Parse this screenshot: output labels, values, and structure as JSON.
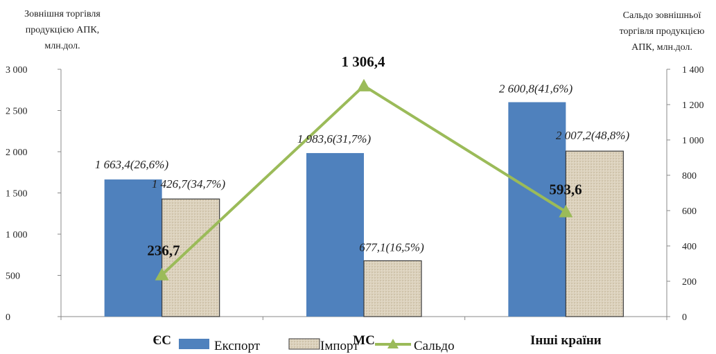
{
  "chart_data": {
    "type": "bar",
    "categories": [
      "ЄС",
      "МС",
      "Інші країни"
    ],
    "left_axis": {
      "label_lines": [
        "Зовнішня торгівля",
        "продукцією АПК,",
        "млн.дол."
      ],
      "range": [
        0,
        3000
      ],
      "ticks": [
        0,
        500,
        1000,
        1500,
        2000,
        2500,
        3000
      ],
      "tick_labels": [
        "0",
        "500",
        "1 000",
        "1 500",
        "2 000",
        "2 500",
        "3 000"
      ]
    },
    "right_axis": {
      "label_lines": [
        "Сальдо зовнішньої",
        "торгівля продукцією",
        "АПК, млн.дол."
      ],
      "range": [
        0,
        1400
      ],
      "ticks": [
        0,
        200,
        400,
        600,
        800,
        1000,
        1200,
        1400
      ],
      "tick_labels": [
        "0",
        "200",
        "400",
        "600",
        "800",
        "1 000",
        "1 200",
        "1 400"
      ]
    },
    "series": [
      {
        "name": "Експорт",
        "type": "bar",
        "axis": "left",
        "color": "#4f81bd",
        "values": [
          1663.4,
          1983.6,
          2600.8
        ],
        "labels": [
          "1 663,4(26,6%)",
          "1 983,6(31,7%)",
          "2 600,8(41,6%)"
        ]
      },
      {
        "name": "Імпорт",
        "type": "bar",
        "axis": "left",
        "color": "#ddd3bf",
        "values": [
          1426.7,
          677.1,
          2007.2
        ],
        "labels": [
          "1 426,7(34,7%)",
          "677,1(16,5%)",
          "2 007,2(48,8%)"
        ]
      },
      {
        "name": "Сальдо",
        "type": "line",
        "axis": "right",
        "color": "#9bbb59",
        "values": [
          236.7,
          1306.4,
          593.6
        ],
        "labels": [
          "236,7",
          "1 306,4",
          "593,6"
        ]
      }
    ],
    "grid": false,
    "legend_position": "bottom"
  }
}
